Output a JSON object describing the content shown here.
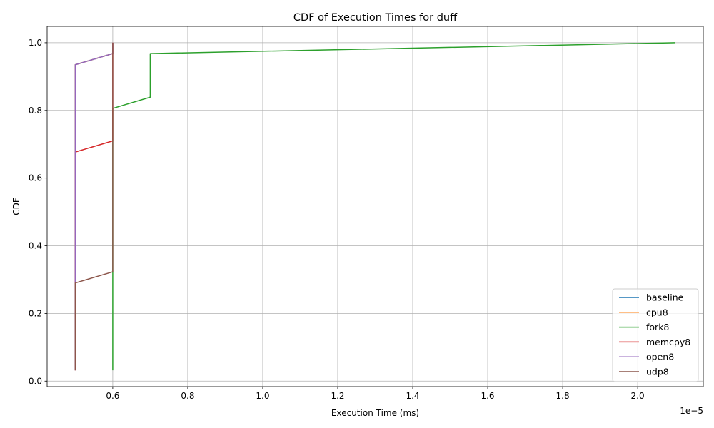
{
  "chart_data": {
    "type": "line",
    "title": "CDF of Execution Times for duff",
    "xlabel": "Execution Time (ms)",
    "ylabel": "CDF",
    "x_offset_label": "1e−5",
    "xlim": [
      0.425,
      2.175
    ],
    "ylim": [
      -0.0163,
      1.0483
    ],
    "x_ticks": [
      0.6,
      0.8,
      1.0,
      1.2,
      1.4,
      1.6,
      1.8,
      2.0
    ],
    "x_tick_labels": [
      "0.6",
      "0.8",
      "1.0",
      "1.2",
      "1.4",
      "1.6",
      "1.8",
      "2.0"
    ],
    "y_ticks": [
      0.0,
      0.2,
      0.4,
      0.6,
      0.8,
      1.0
    ],
    "y_tick_labels": [
      "0.0",
      "0.2",
      "0.4",
      "0.6",
      "0.8",
      "1.0"
    ],
    "grid": true,
    "legend_position": "bottom-right",
    "series": [
      {
        "name": "baseline",
        "color": "#1f77b4",
        "x": [
          0.5,
          0.5,
          0.6,
          0.6
        ],
        "y": [
          0.032,
          0.935,
          0.968,
          1.0
        ]
      },
      {
        "name": "cpu8",
        "color": "#ff7f0e",
        "x": [
          0.5,
          0.5,
          0.6,
          0.6
        ],
        "y": [
          0.032,
          0.935,
          0.968,
          1.0
        ]
      },
      {
        "name": "fork8",
        "color": "#2ca02c",
        "x": [
          0.6,
          0.6,
          0.7,
          0.7,
          2.1
        ],
        "y": [
          0.032,
          0.806,
          0.839,
          0.968,
          1.0
        ]
      },
      {
        "name": "memcpy8",
        "color": "#d62728",
        "x": [
          0.5,
          0.5,
          0.6,
          0.6
        ],
        "y": [
          0.032,
          0.677,
          0.71,
          1.0
        ]
      },
      {
        "name": "open8",
        "color": "#9467bd",
        "x": [
          0.5,
          0.5,
          0.6,
          0.6
        ],
        "y": [
          0.032,
          0.935,
          0.968,
          1.0
        ]
      },
      {
        "name": "udp8",
        "color": "#8c564b",
        "x": [
          0.5,
          0.5,
          0.6,
          0.6
        ],
        "y": [
          0.032,
          0.29,
          0.323,
          1.0
        ]
      }
    ]
  }
}
